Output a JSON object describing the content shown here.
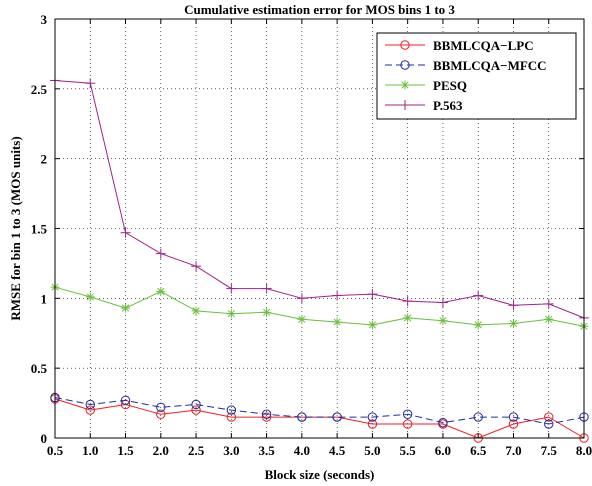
{
  "chart_data": {
    "type": "line",
    "title": "Cumulative estimation error for MOS bins 1 to 3",
    "xlabel": "Block size (seconds)",
    "ylabel": "RMSE for bin 1 to 3 (MOS units)",
    "xlim": [
      0.5,
      8.0
    ],
    "ylim": [
      0,
      3
    ],
    "grid": true,
    "legend_position": "top-right",
    "x": [
      0.5,
      1.0,
      1.5,
      2.0,
      2.5,
      3.0,
      3.5,
      4.0,
      4.5,
      5.0,
      5.5,
      6.0,
      6.5,
      7.0,
      7.5,
      8.0
    ],
    "x_tick_labels": [
      "0.5",
      "1.0",
      "1.5",
      "2.0",
      "2.5",
      "3.0",
      "3.5",
      "4.0",
      "4.5",
      "5.0",
      "5.5",
      "6.0",
      "6.5",
      "7.0",
      "7.5",
      "8.0"
    ],
    "y_ticks": [
      0,
      0.5,
      1,
      1.5,
      2,
      2.5,
      3
    ],
    "y_tick_labels": [
      "0",
      "0.5",
      "1",
      "1.5",
      "2",
      "2.5",
      "3"
    ],
    "series": [
      {
        "name": "BBMLCQA−LPC",
        "color": "#ee1c24",
        "dash": "solid",
        "marker": "circle",
        "values": [
          0.28,
          0.2,
          0.24,
          0.17,
          0.2,
          0.15,
          0.15,
          0.15,
          0.15,
          0.1,
          0.1,
          0.1,
          0.0,
          0.1,
          0.15,
          0.0
        ]
      },
      {
        "name": "BBMLCQA−MFCC",
        "color": "#1c2ea0",
        "dash": "dashed",
        "marker": "circle",
        "values": [
          0.29,
          0.24,
          0.27,
          0.22,
          0.24,
          0.2,
          0.17,
          0.15,
          0.15,
          0.15,
          0.17,
          0.11,
          0.15,
          0.15,
          0.1,
          0.15
        ]
      },
      {
        "name": "PESQ",
        "color": "#6abf3c",
        "dash": "solid",
        "marker": "star",
        "values": [
          1.08,
          1.01,
          0.93,
          1.05,
          0.91,
          0.89,
          0.9,
          0.85,
          0.83,
          0.81,
          0.86,
          0.84,
          0.81,
          0.82,
          0.85,
          0.8
        ]
      },
      {
        "name": "P.563",
        "color": "#a0228a",
        "dash": "solid",
        "marker": "plus",
        "values": [
          2.56,
          2.54,
          1.47,
          1.32,
          1.23,
          1.07,
          1.07,
          1.0,
          1.02,
          1.03,
          0.98,
          0.97,
          1.02,
          0.95,
          0.96,
          0.86
        ]
      }
    ]
  }
}
